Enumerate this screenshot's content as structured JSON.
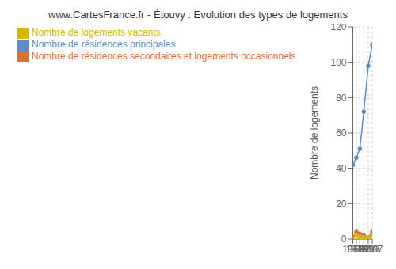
{
  "chart_data": {
    "type": "line",
    "title": "www.CartesFrance.fr - Étouvy : Evolution des types de logements",
    "ylabel": "Nombre de logements",
    "x": [
      1968,
      1975,
      1982,
      1990,
      1999,
      2007
    ],
    "series": [
      {
        "name": "Nombre de résidences principales",
        "color": "#5b8dc8",
        "values": [
          42,
          46,
          51,
          72,
          98,
          110
        ]
      },
      {
        "name": "Nombre de résidences secondaires et logements occasionnels",
        "color": "#e07030",
        "values": [
          1,
          4,
          3,
          2,
          1,
          4
        ]
      },
      {
        "name": "Nombre de logements vacants",
        "color": "#d4b800",
        "values": [
          0,
          2,
          1,
          1,
          1,
          2
        ]
      }
    ],
    "xlim": [
      1968,
      2007
    ],
    "xticks": [
      1968,
      1975,
      1982,
      1990,
      1999,
      2007
    ],
    "ylim": [
      0,
      120
    ],
    "yticks": [
      0,
      20,
      40,
      60,
      80,
      100,
      120
    ],
    "grid": true,
    "legend": "top",
    "marker": "circle"
  }
}
